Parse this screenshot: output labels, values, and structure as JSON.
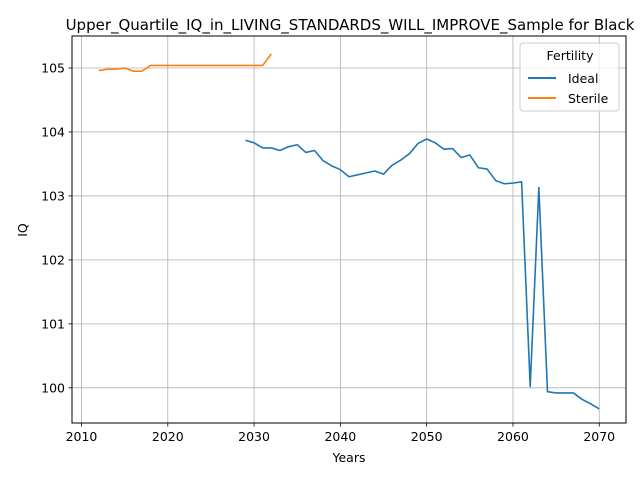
{
  "chart_data": {
    "type": "line",
    "title": "Upper_Quartile_IQ_in_LIVING_STANDARDS_WILL_IMPROVE_Sample for Black",
    "xlabel": "Years",
    "ylabel": "IQ",
    "xlim": [
      2008.9,
      2073.1
    ],
    "ylim": [
      99.45,
      105.5
    ],
    "xticks": [
      2010,
      2020,
      2030,
      2040,
      2050,
      2060,
      2070
    ],
    "yticks": [
      100,
      101,
      102,
      103,
      104,
      105
    ],
    "grid": true,
    "legend": {
      "title": "Fertility",
      "placement": "top-right"
    },
    "series": [
      {
        "name": "Ideal",
        "color": "#1f77b4",
        "x": [
          2029,
          2030,
          2031,
          2032,
          2033,
          2034,
          2035,
          2036,
          2037,
          2038,
          2039,
          2040,
          2041,
          2042,
          2043,
          2044,
          2045,
          2046,
          2047,
          2048,
          2049,
          2050,
          2051,
          2052,
          2053,
          2054,
          2055,
          2056,
          2057,
          2058,
          2059,
          2060,
          2061,
          2062,
          2063,
          2064,
          2065,
          2066,
          2067,
          2068,
          2069,
          2070
        ],
        "y": [
          103.87,
          103.83,
          103.75,
          103.75,
          103.71,
          103.77,
          103.8,
          103.68,
          103.71,
          103.55,
          103.47,
          103.41,
          103.3,
          103.33,
          103.36,
          103.39,
          103.34,
          103.48,
          103.56,
          103.66,
          103.82,
          103.89,
          103.83,
          103.73,
          103.74,
          103.6,
          103.64,
          103.44,
          103.42,
          103.24,
          103.19,
          103.2,
          103.22,
          100.02,
          103.13,
          99.94,
          99.92,
          99.92,
          99.92,
          99.82,
          99.75,
          99.67
        ]
      },
      {
        "name": "Sterile",
        "color": "#ff7f0e",
        "x": [
          2012,
          2013,
          2014,
          2015,
          2016,
          2017,
          2018,
          2019,
          2020,
          2021,
          2022,
          2023,
          2024,
          2025,
          2026,
          2027,
          2028,
          2029,
          2030,
          2031,
          2032
        ],
        "y": [
          104.96,
          104.98,
          104.98,
          105.0,
          104.95,
          104.95,
          105.04,
          105.04,
          105.04,
          105.04,
          105.04,
          105.04,
          105.04,
          105.04,
          105.04,
          105.04,
          105.04,
          105.04,
          105.04,
          105.04,
          105.22
        ]
      }
    ]
  }
}
